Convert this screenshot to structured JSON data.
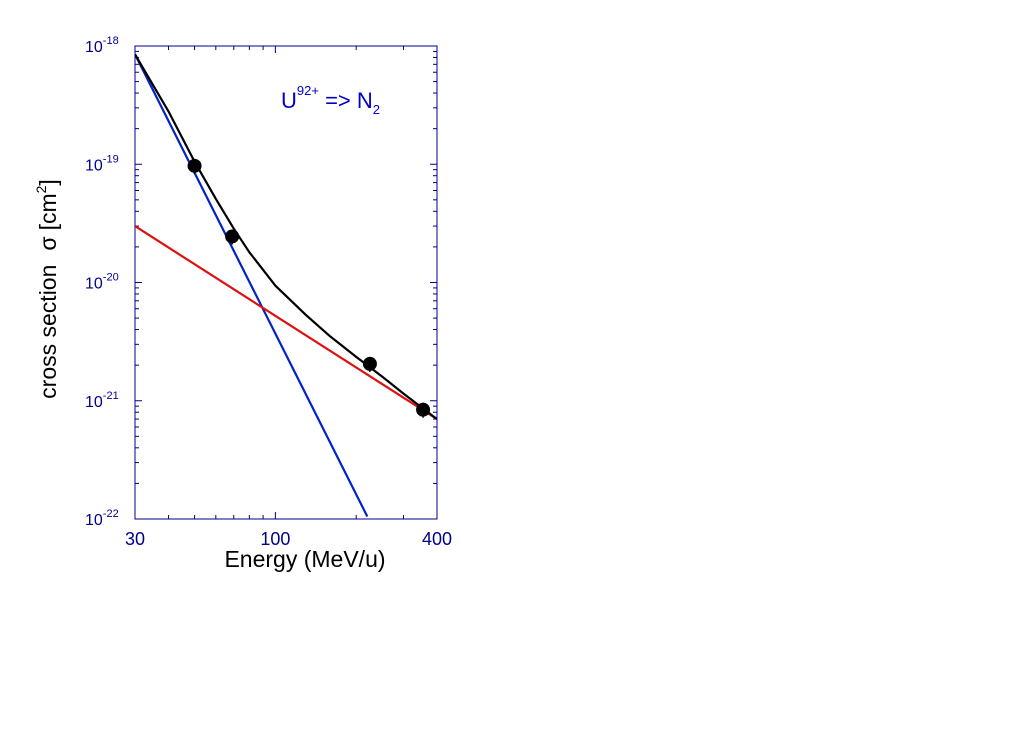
{
  "chart_data": {
    "type": "scatter",
    "title": "",
    "xlabel": "Energy (MeV/u)",
    "ylabel_main": "cross section",
    "ylabel_symbol": "σ",
    "ylabel_unit_prefix": "[cm",
    "ylabel_unit_exp": "2",
    "ylabel_unit_suffix": "]",
    "x_scale": "log",
    "y_scale": "log",
    "xlim": [
      30,
      400
    ],
    "ylim": [
      1e-22,
      1e-18
    ],
    "x_ticks": [
      {
        "value": 30,
        "label": "30"
      },
      {
        "value": 100,
        "label": "100"
      },
      {
        "value": 400,
        "label": "400"
      }
    ],
    "y_ticks": [
      {
        "value": 1e-18,
        "base": "10",
        "exp": "-18"
      },
      {
        "value": 1e-19,
        "base": "10",
        "exp": "-19"
      },
      {
        "value": 1e-20,
        "base": "10",
        "exp": "-20"
      },
      {
        "value": 1e-21,
        "base": "10",
        "exp": "-21"
      },
      {
        "value": 1e-22,
        "base": "10",
        "exp": "-22"
      }
    ],
    "annotation": {
      "ion": "U",
      "charge": "92+",
      "arrow": " => ",
      "target": "N",
      "target_sub": "2",
      "color": "#0000cc"
    },
    "grid": false,
    "series": [
      {
        "kind": "points",
        "color": "#000000",
        "points": [
          {
            "x": 50,
            "y": 9.7e-20
          },
          {
            "x": 69,
            "y": 2.45e-20
          },
          {
            "x": 225,
            "y": 2.05e-21
          },
          {
            "x": 355,
            "y": 8.4e-22
          }
        ]
      },
      {
        "kind": "line",
        "color": "#0022cc",
        "points": [
          [
            30,
            8.5e-19
          ],
          [
            220,
            1.05e-22
          ]
        ]
      },
      {
        "kind": "line",
        "color": "#dd1111",
        "points": [
          [
            30,
            3e-20
          ],
          [
            400,
            7e-22
          ]
        ]
      },
      {
        "kind": "line",
        "color": "#000000",
        "points": [
          [
            30,
            8.5e-19
          ],
          [
            40,
            2.8e-19
          ],
          [
            50,
            1.05e-19
          ],
          [
            60,
            5.1e-20
          ],
          [
            70,
            2.85e-20
          ],
          [
            80,
            1.8e-20
          ],
          [
            100,
            9.4e-21
          ],
          [
            130,
            5.3e-21
          ],
          [
            160,
            3.5e-21
          ],
          [
            200,
            2.35e-21
          ],
          [
            250,
            1.6e-21
          ],
          [
            300,
            1.15e-21
          ],
          [
            350,
            8.8e-22
          ],
          [
            400,
            7e-22
          ]
        ]
      }
    ]
  }
}
